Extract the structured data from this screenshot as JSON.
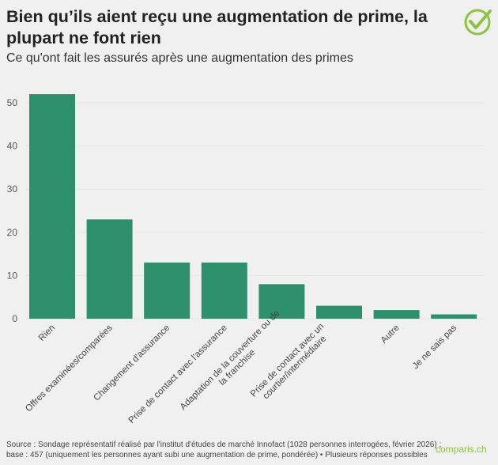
{
  "title": "Bien qu’ils aient reçu une augmentation de prime, la plupart ne font rien",
  "subtitle": "Ce qu'ont fait les assurés après une augmentation des primes",
  "source_line1": "Source : Sondage représentatif réalisé par l'institut d'études de marché Innofact (1028 personnes interrogées, février 2026) ;",
  "source_line2": "base : 457 (uniquement les personnes ayant subi une augmentation de prime, pondérée) • Plusieurs réponses possibles",
  "brand": "comparis.ch",
  "colors": {
    "bar": "#2e8f6c",
    "accent": "#8cc43f",
    "background": "#f0f0f0"
  },
  "chart_data": {
    "type": "bar",
    "categories": [
      "Rien",
      "Offres examinées/comparées",
      "Changement d'assurance",
      "Prise de contact avec l'assurance",
      "Adaptation de la couverture ou de la franchise",
      "Prise de contact avec un courtier/intermédiaire",
      "Autre",
      "Je ne sais pas"
    ],
    "category_lines": [
      [
        "Rien"
      ],
      [
        "Offres examinées/comparées"
      ],
      [
        "Changement d'assurance"
      ],
      [
        "Prise de contact avec l'assurance"
      ],
      [
        "Adaptation de la couverture ou de",
        "la franchise"
      ],
      [
        "Prise de contact avec un",
        "courtier/intermédiaire"
      ],
      [
        "Autre"
      ],
      [
        "Je ne sais pas"
      ]
    ],
    "values": [
      52,
      23,
      13,
      13,
      8,
      3,
      2,
      1
    ],
    "yticks": [
      0,
      10,
      20,
      30,
      40,
      50
    ],
    "ylim": [
      0,
      55
    ],
    "grid": true,
    "xlabel": "",
    "ylabel": ""
  }
}
